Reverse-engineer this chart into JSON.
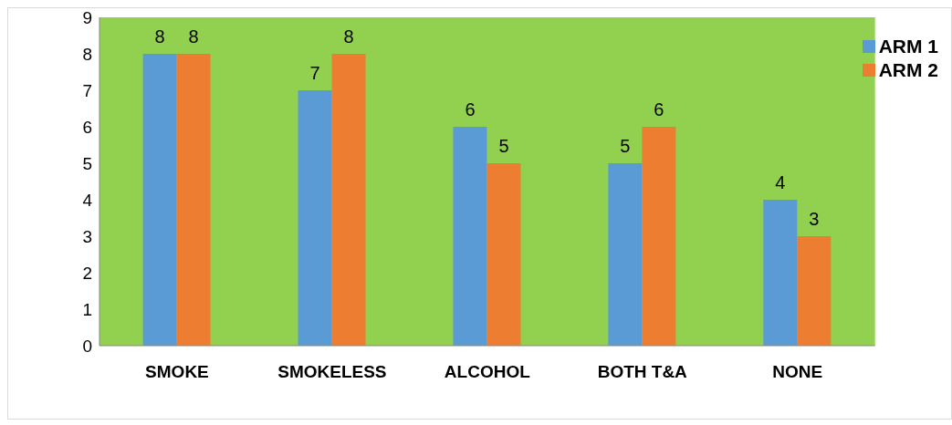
{
  "chart_data": {
    "type": "bar",
    "categories": [
      "SMOKE",
      "SMOKELESS",
      "ALCOHOL",
      "BOTH T&A",
      "NONE"
    ],
    "series": [
      {
        "name": "ARM 1",
        "color": "#5b9bd5",
        "values": [
          8,
          7,
          6,
          5,
          4
        ]
      },
      {
        "name": "ARM 2",
        "color": "#ed7d31",
        "values": [
          8,
          8,
          5,
          6,
          3
        ]
      }
    ],
    "ylim": [
      0,
      9
    ],
    "yticks": [
      0,
      1,
      2,
      3,
      4,
      5,
      6,
      7,
      8,
      9
    ],
    "grid": false,
    "legend": "top right",
    "data_labels": true
  }
}
